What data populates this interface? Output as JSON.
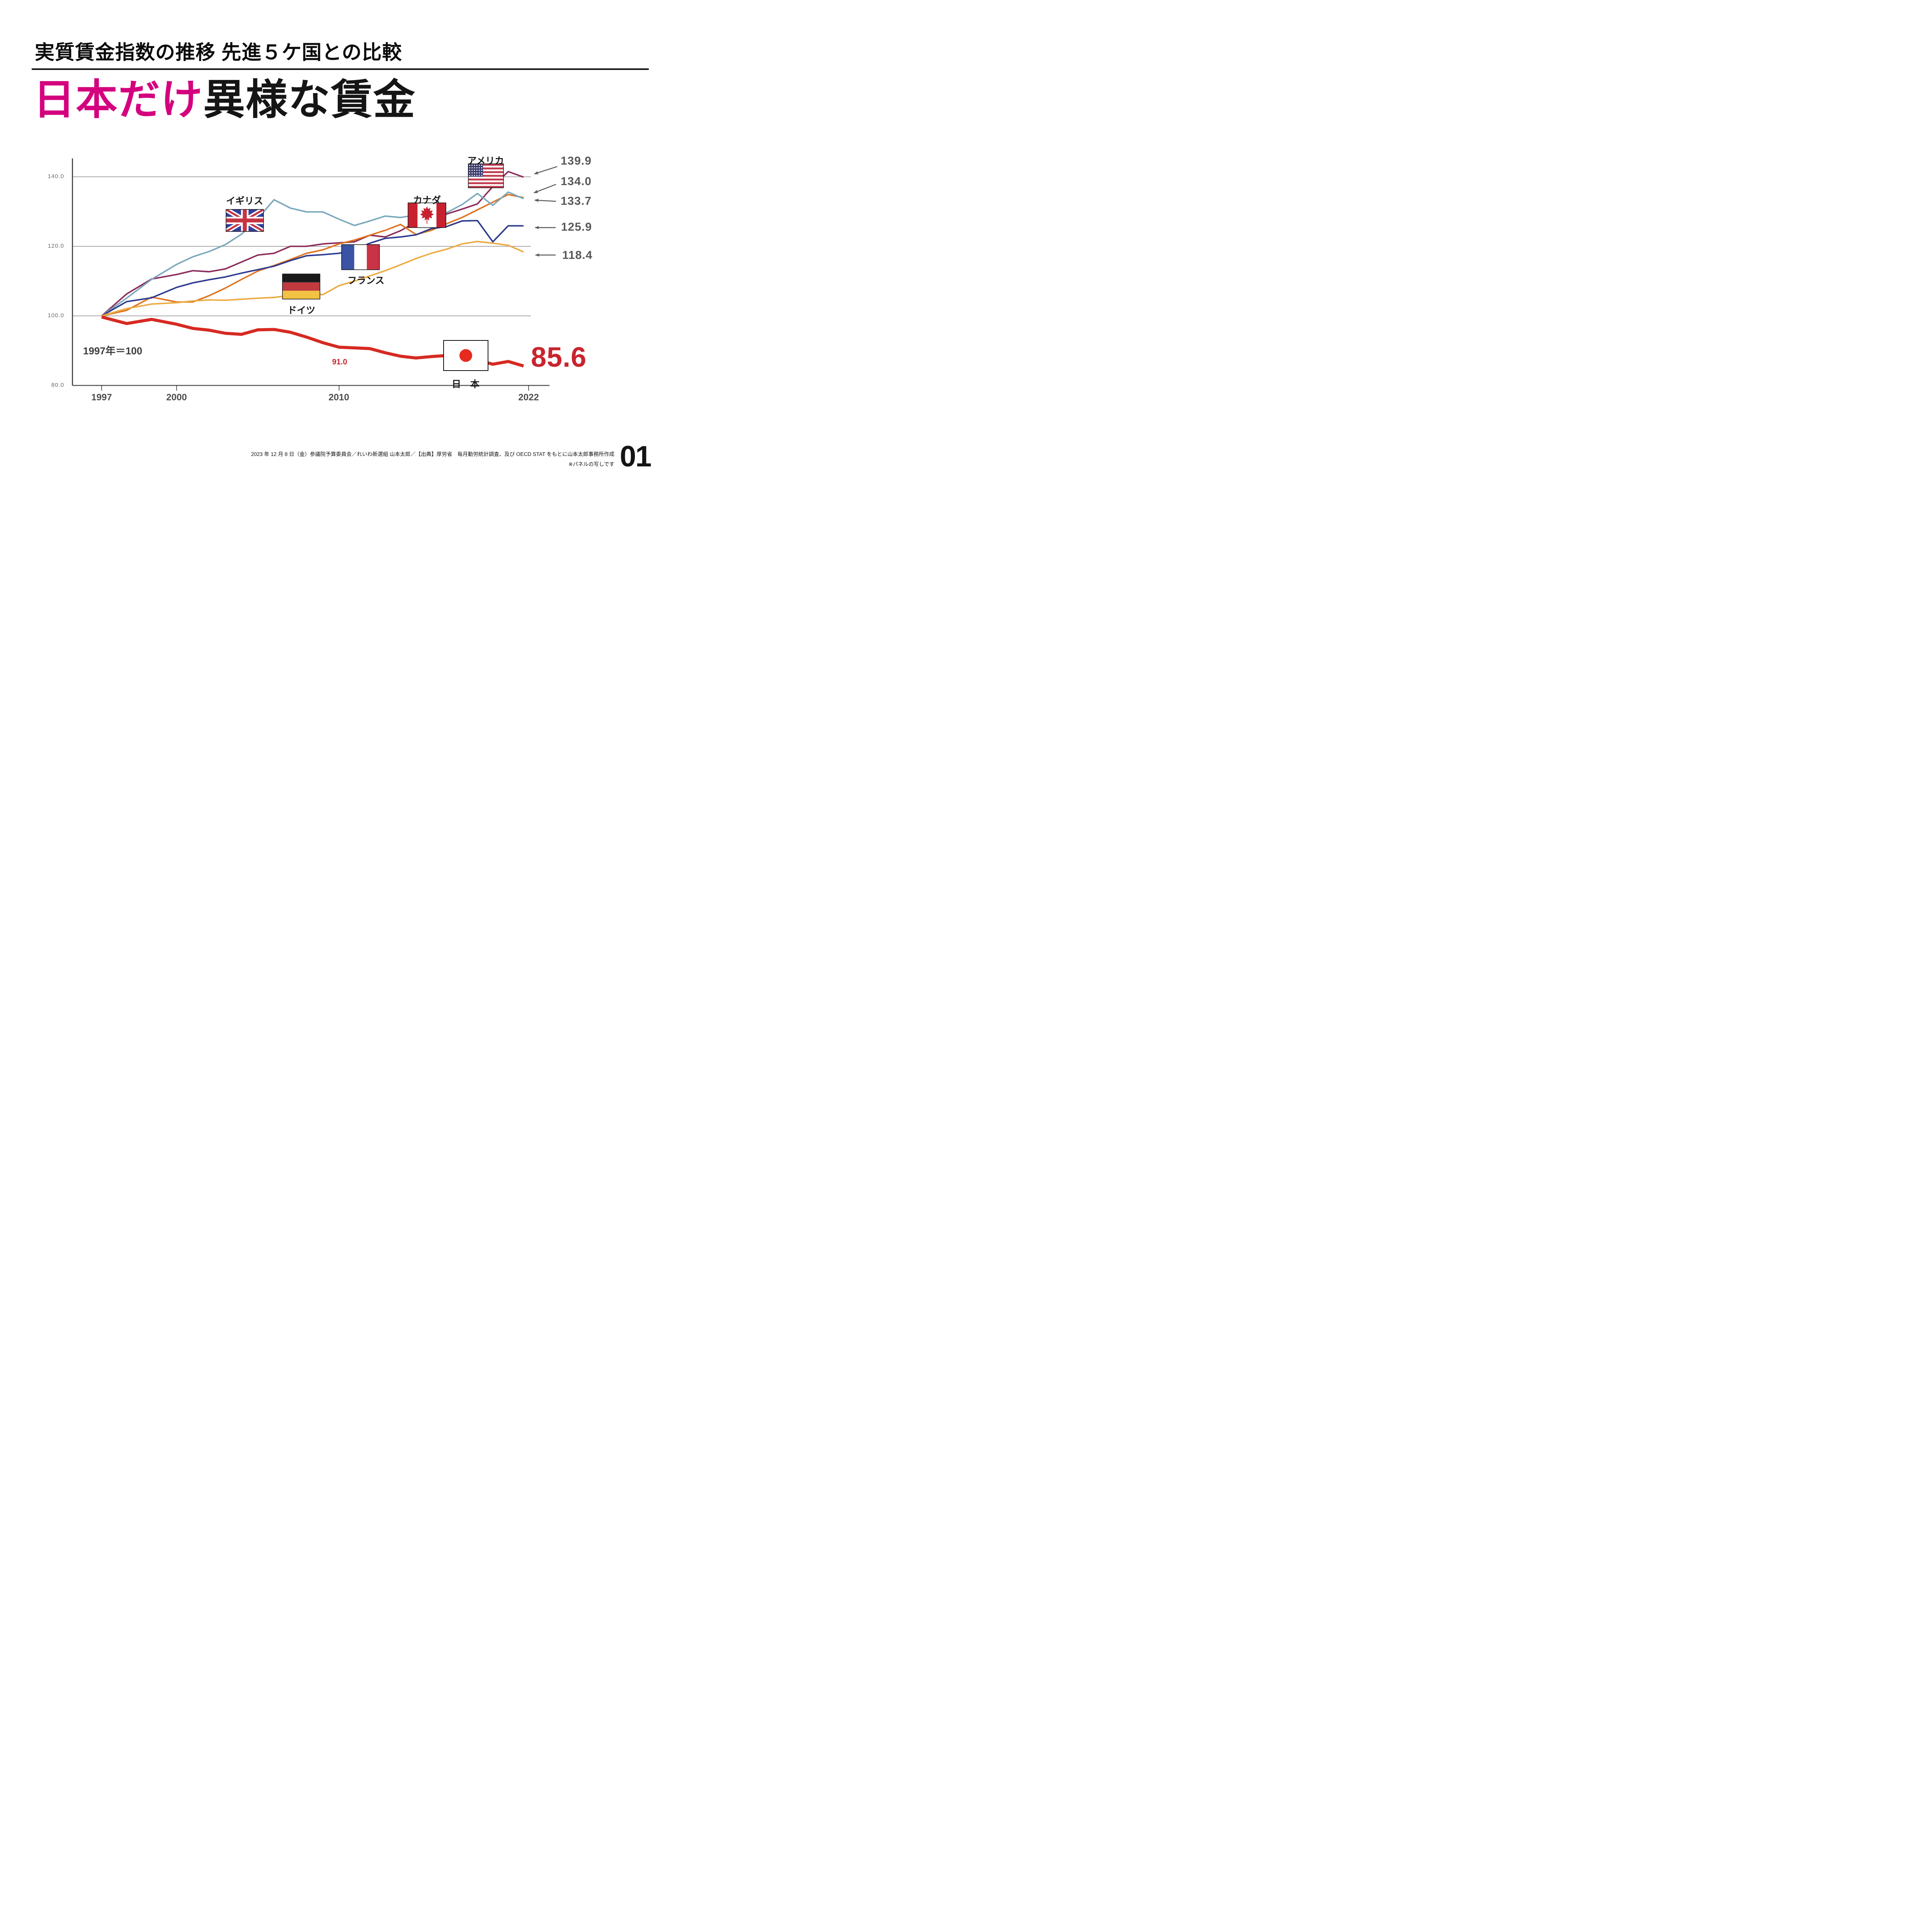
{
  "page": {
    "title": "実質賃金指数の推移 先進５ケ国との比較",
    "headline_highlight": "日本だけ",
    "headline_rest": "異様な賃金",
    "baseline_note": "1997年＝100",
    "footer_line1": "2023 年 12 月 8 日（金）参議院予算委員会／れいわ新選組 山本太郎／【出典】厚労省　毎月勤労統計調査、及び OECD STAT をもとに山本太郎事務所作成",
    "footer_line2": "※パネルの写しです",
    "page_number": "01"
  },
  "chart_data": {
    "type": "line",
    "title": "実質賃金指数の推移 先進５ケ国との比較",
    "baseline_note": "1997年＝100",
    "x": [
      1997,
      1998,
      1999,
      2000,
      2001,
      2002,
      2003,
      2004,
      2005,
      2006,
      2007,
      2008,
      2009,
      2010,
      2011,
      2012,
      2013,
      2014,
      2015,
      2016,
      2017,
      2018,
      2019,
      2020,
      2021,
      2022
    ],
    "x_tick_labels": [
      "1997",
      "2000",
      "2010",
      "2022"
    ],
    "y_tick_labels": [
      "140.0",
      "120.0",
      "100.0",
      "80.0"
    ],
    "ylim": [
      80,
      145
    ],
    "grid": "horizontal",
    "legend_position": "flags-on-chart",
    "series": [
      {
        "id": "usa",
        "label": "アメリカ",
        "label_en": "USA",
        "color": "#8c2c5c",
        "line_width": 3.8,
        "end_label": "139.9",
        "values": [
          100,
          106.3,
          110.6,
          111.9,
          113.0,
          112.7,
          113.5,
          115.5,
          117.5,
          118.0,
          120.0,
          120.0,
          120.7,
          121.0,
          121.3,
          123.2,
          122.7,
          124.5,
          127.0,
          128.0,
          129.3,
          130.7,
          132.2,
          137.2,
          141.5,
          139.9
        ]
      },
      {
        "id": "canada",
        "label": "カナダ",
        "label_en": "Canada",
        "color": "#e0731e",
        "line_width": 3.8,
        "end_label": "134.0",
        "values": [
          100,
          101.6,
          105.4,
          104.0,
          104.0,
          105.8,
          108.0,
          110.5,
          112.9,
          114.5,
          116.2,
          118.0,
          119.0,
          120.7,
          121.8,
          123.2,
          124.6,
          126.3,
          123.4,
          124.6,
          126.5,
          128.3,
          130.5,
          132.7,
          134.9,
          134.0
        ]
      },
      {
        "id": "uk",
        "label": "イギリス",
        "label_en": "UK",
        "color": "#7ba7bc",
        "line_width": 3.8,
        "end_label": "133.7",
        "values": [
          100,
          105.1,
          110.5,
          114.8,
          117.0,
          118.5,
          120.5,
          123.5,
          128.0,
          133.4,
          131.0,
          129.9,
          129.9,
          127.8,
          126.0,
          127.3,
          128.7,
          128.3,
          129.0,
          129.2,
          129.7,
          132.0,
          135.2,
          131.8,
          135.6,
          133.7
        ]
      },
      {
        "id": "france",
        "label": "フランス",
        "label_en": "France",
        "color": "#2d3a8e",
        "line_width": 3.8,
        "end_label": "125.9",
        "values": [
          100,
          104.1,
          105.2,
          108.2,
          109.5,
          110.4,
          111.2,
          112.3,
          113.3,
          114.3,
          115.9,
          117.3,
          117.6,
          118.0,
          119.0,
          120.9,
          122.3,
          122.7,
          123.3,
          125.1,
          125.7,
          127.3,
          127.4,
          121.3,
          125.9,
          125.9
        ]
      },
      {
        "id": "germany",
        "label": "ドイツ",
        "label_en": "Germany",
        "color": "#ecaa41",
        "line_width": 3.8,
        "end_label": "118.4",
        "values": [
          100,
          102.1,
          103.4,
          103.8,
          104.3,
          104.6,
          104.5,
          104.8,
          105.1,
          105.3,
          105.9,
          106.6,
          106.1,
          108.7,
          110.0,
          111.5,
          113.0,
          114.7,
          116.5,
          118.0,
          119.2,
          120.7,
          121.4,
          120.9,
          120.3,
          118.4
        ]
      },
      {
        "id": "japan",
        "label": "日　本",
        "label_en": "Japan",
        "color": "#d62a22",
        "line_width": 8,
        "end_label": "85.6",
        "mid_annotation": "91.0",
        "values": [
          99.7,
          97.8,
          99.0,
          97.6,
          96.4,
          95.9,
          95.0,
          94.7,
          96.0,
          96.1,
          95.3,
          93.9,
          92.3,
          91.0,
          90.8,
          90.6,
          89.4,
          88.4,
          87.9,
          88.3,
          88.6,
          88.4,
          87.3,
          86.1,
          86.9,
          85.6
        ]
      }
    ]
  }
}
